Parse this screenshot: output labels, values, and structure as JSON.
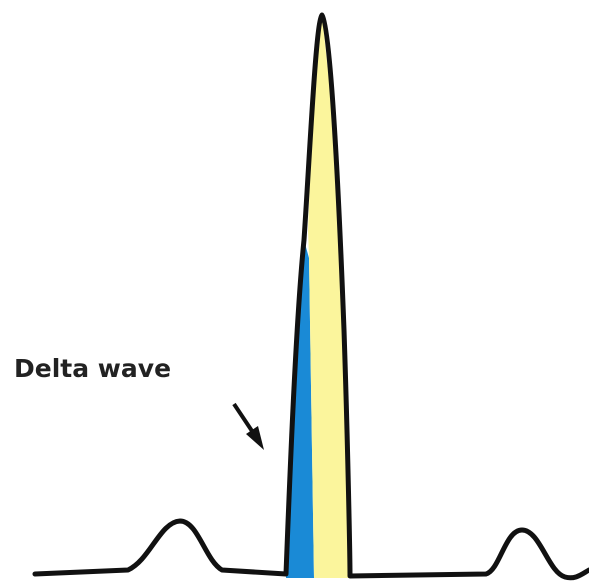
{
  "annotation": {
    "label": "Delta wave"
  }
}
